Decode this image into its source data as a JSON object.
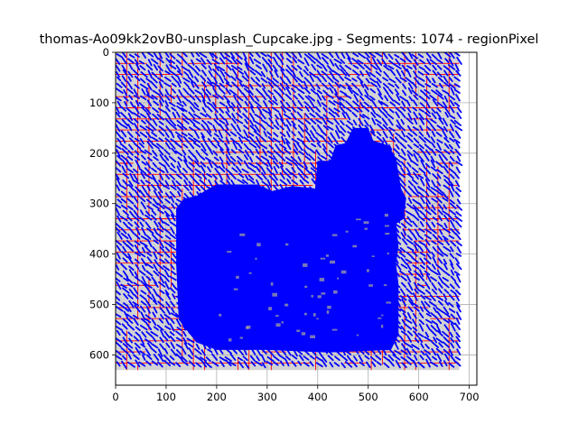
{
  "chart_data": {
    "type": "scatter",
    "title": "thomas-Ao09kk2ovB0-unsplash_Cupcake.jpg - Segments: 1074 - regionPixel",
    "xlabel": "",
    "ylabel": "",
    "xlim": [
      0,
      715
    ],
    "ylim": [
      660,
      0
    ],
    "y_inverted": true,
    "grid": true,
    "x_ticks": [
      "0",
      "100",
      "200",
      "300",
      "400",
      "500",
      "600",
      "700"
    ],
    "y_ticks": [
      "0",
      "100",
      "200",
      "300",
      "400",
      "500",
      "600"
    ],
    "image_extent": {
      "x": [
        0,
        680
      ],
      "y": [
        0,
        630
      ]
    },
    "colors": {
      "segment_boundary": "#ff0000",
      "region_fill": "#d3d3d3",
      "orientation_glyph": "#0000ff",
      "grid": "#b0b0b0"
    },
    "dense_region_polygon": [
      [
        120,
        310
      ],
      [
        135,
        290
      ],
      [
        160,
        285
      ],
      [
        185,
        270
      ],
      [
        200,
        262
      ],
      [
        280,
        262
      ],
      [
        310,
        275
      ],
      [
        350,
        265
      ],
      [
        395,
        270
      ],
      [
        400,
        215
      ],
      [
        425,
        215
      ],
      [
        435,
        185
      ],
      [
        455,
        180
      ],
      [
        470,
        150
      ],
      [
        500,
        150
      ],
      [
        510,
        175
      ],
      [
        540,
        185
      ],
      [
        555,
        210
      ],
      [
        565,
        270
      ],
      [
        575,
        290
      ],
      [
        570,
        330
      ],
      [
        555,
        340
      ],
      [
        560,
        385
      ],
      [
        555,
        420
      ],
      [
        560,
        460
      ],
      [
        560,
        520
      ],
      [
        560,
        560
      ],
      [
        545,
        590
      ],
      [
        420,
        595
      ],
      [
        300,
        590
      ],
      [
        200,
        590
      ],
      [
        160,
        575
      ],
      [
        140,
        550
      ],
      [
        125,
        530
      ],
      [
        120,
        420
      ]
    ]
  }
}
